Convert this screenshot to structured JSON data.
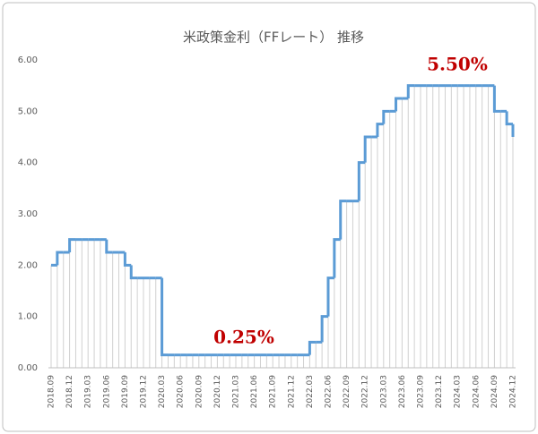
{
  "chart_data": {
    "type": "step-line",
    "title": "米政策金利（FFレート） 推移",
    "categories": [
      "2018.09",
      null,
      null,
      "2018.12",
      null,
      null,
      "2019.03",
      null,
      null,
      "2019.06",
      null,
      null,
      "2019.09",
      null,
      null,
      "2019.12",
      null,
      null,
      "2020.03",
      null,
      null,
      "2020.06",
      null,
      null,
      "2020.09",
      null,
      null,
      "2020.12",
      null,
      null,
      "2021.03",
      null,
      null,
      "2021.06",
      null,
      null,
      "2021.09",
      null,
      null,
      "2021.12",
      null,
      null,
      "2022.03",
      null,
      null,
      "2022.06",
      null,
      null,
      "2022.09",
      null,
      null,
      "2022.12",
      null,
      null,
      "2023.03",
      null,
      null,
      "2023.06",
      null,
      null,
      "2023.09",
      null,
      null,
      "2023.12",
      null,
      null,
      "2024.03",
      null,
      null,
      "2024.06",
      null,
      null,
      "2024.09",
      null,
      null,
      "2024.12"
    ],
    "values": [
      2.0,
      2.25,
      2.25,
      2.5,
      2.5,
      2.5,
      2.5,
      2.5,
      2.5,
      2.25,
      2.25,
      2.25,
      2.0,
      1.75,
      1.75,
      1.75,
      1.75,
      1.75,
      0.25,
      0.25,
      0.25,
      0.25,
      0.25,
      0.25,
      0.25,
      0.25,
      0.25,
      0.25,
      0.25,
      0.25,
      0.25,
      0.25,
      0.25,
      0.25,
      0.25,
      0.25,
      0.25,
      0.25,
      0.25,
      0.25,
      0.25,
      0.25,
      0.5,
      0.5,
      1.0,
      1.75,
      2.5,
      3.25,
      3.25,
      3.25,
      4.0,
      4.5,
      4.5,
      4.75,
      5.0,
      5.0,
      5.25,
      5.25,
      5.5,
      5.5,
      5.5,
      5.5,
      5.5,
      5.5,
      5.5,
      5.5,
      5.5,
      5.5,
      5.5,
      5.5,
      5.5,
      5.5,
      5.0,
      5.0,
      4.75,
      4.5
    ],
    "color": "#5b9bd5",
    "drop_line_color": "#d0d0d0",
    "ylim": [
      0,
      6
    ],
    "yticks": [
      {
        "value": 0,
        "label": "0.00"
      },
      {
        "value": 1,
        "label": "1.00"
      },
      {
        "value": 2,
        "label": "2.00"
      },
      {
        "value": 3,
        "label": "3.00"
      },
      {
        "value": 4,
        "label": "4.00"
      },
      {
        "value": 5,
        "label": "5.00"
      },
      {
        "value": 6,
        "label": "6.00"
      }
    ],
    "grid": false,
    "annotations": [
      "0.25%",
      "5.50%"
    ]
  }
}
